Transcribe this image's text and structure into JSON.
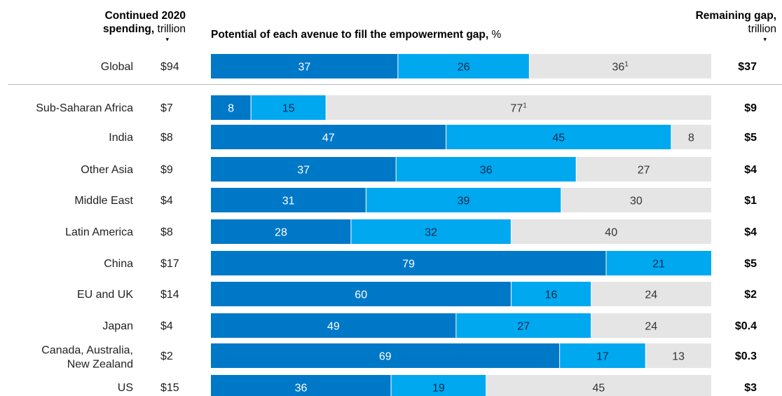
{
  "header": {
    "spending_bold": "Continued 2020",
    "spending_bold2": "spending,",
    "spending_unit": "trillion",
    "potential_bold": "Potential of each avenue to fill the empowerment gap,",
    "potential_unit": "%",
    "gap_bold": "Remaining gap,",
    "gap_unit": "trillion",
    "arrow": "▾"
  },
  "chart_data": {
    "type": "bar",
    "orientation": "horizontal",
    "stacked": true,
    "normalized_percent": true,
    "title": "Potential of each avenue to fill the empowerment gap, %",
    "colors": [
      "#0078c8",
      "#00a8f0",
      "#e5e5e5"
    ],
    "rows": [
      {
        "region": "Global",
        "spending": "$94",
        "segments": [
          37,
          26,
          36
        ],
        "segment_labels": [
          "37",
          "26",
          "36"
        ],
        "footnote_index": 2,
        "footnote_mark": "1",
        "gap": "$37"
      },
      {
        "region": "Sub-Saharan Africa",
        "spending": "$7",
        "segments": [
          8,
          15,
          77
        ],
        "segment_labels": [
          "8",
          "15",
          "77"
        ],
        "footnote_index": 2,
        "footnote_mark": "1",
        "gap": "$9"
      },
      {
        "region": "India",
        "spending": "$8",
        "segments": [
          47,
          45,
          8
        ],
        "segment_labels": [
          "47",
          "45",
          "8"
        ],
        "gap": "$5"
      },
      {
        "region": "Other Asia",
        "spending": "$9",
        "segments": [
          37,
          36,
          27
        ],
        "segment_labels": [
          "37",
          "36",
          "27"
        ],
        "gap": "$4"
      },
      {
        "region": "Middle East",
        "spending": "$4",
        "segments": [
          31,
          39,
          30
        ],
        "segment_labels": [
          "31",
          "39",
          "30"
        ],
        "gap": "$1"
      },
      {
        "region": "Latin America",
        "spending": "$8",
        "segments": [
          28,
          32,
          40
        ],
        "segment_labels": [
          "28",
          "32",
          "40"
        ],
        "gap": "$4"
      },
      {
        "region": "China",
        "spending": "$17",
        "segments": [
          79,
          21
        ],
        "segment_labels": [
          "79",
          "21"
        ],
        "gap": "$5"
      },
      {
        "region": "EU and UK",
        "spending": "$14",
        "segments": [
          60,
          16,
          24
        ],
        "segment_labels": [
          "60",
          "16",
          "24"
        ],
        "gap": "$2"
      },
      {
        "region": "Japan",
        "spending": "$4",
        "segments": [
          49,
          27,
          24
        ],
        "segment_labels": [
          "49",
          "27",
          "24"
        ],
        "gap": "$0.4"
      },
      {
        "region": [
          "Canada, Australia,",
          "New Zealand"
        ],
        "spending": "$2",
        "segments": [
          69,
          17,
          13
        ],
        "segment_labels": [
          "69",
          "17",
          "13"
        ],
        "gap": "$0.3"
      },
      {
        "region": "US",
        "spending": "$15",
        "segments": [
          36,
          19,
          45
        ],
        "segment_labels": [
          "36",
          "19",
          "45"
        ],
        "gap": "$3"
      }
    ]
  }
}
